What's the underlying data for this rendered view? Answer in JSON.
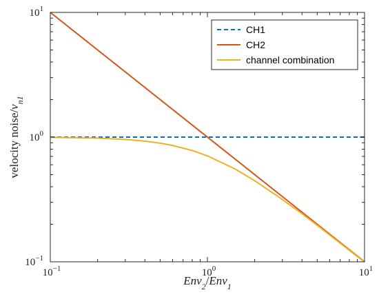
{
  "chart_data": {
    "type": "line",
    "title": "",
    "x_scale": "log",
    "y_scale": "log",
    "xlim": [
      0.1,
      10
    ],
    "ylim": [
      0.1,
      10
    ],
    "grid": false,
    "legend_position": "top-right",
    "xlabel": {
      "parts": [
        {
          "text": "Env",
          "style": "italic"
        },
        {
          "text": "2",
          "style": "italic-sub"
        },
        {
          "text": "/",
          "style": "normal"
        },
        {
          "text": "Env",
          "style": "italic"
        },
        {
          "text": "1",
          "style": "italic-sub"
        }
      ]
    },
    "ylabel": {
      "parts": [
        {
          "text": "velocity noise/",
          "style": "normal"
        },
        {
          "text": "v",
          "style": "italic"
        },
        {
          "text": "n1",
          "style": "italic-sub"
        }
      ]
    },
    "x_ticks": [
      {
        "value": 0.1,
        "base": "10",
        "exp": "−1"
      },
      {
        "value": 1,
        "base": "10",
        "exp": "0"
      },
      {
        "value": 10,
        "base": "10",
        "exp": "1"
      }
    ],
    "y_ticks": [
      {
        "value": 0.1,
        "base": "10",
        "exp": "−1"
      },
      {
        "value": 1,
        "base": "10",
        "exp": "0"
      },
      {
        "value": 10,
        "base": "10",
        "exp": "1"
      }
    ],
    "series": [
      {
        "name": "CH1",
        "color": "#0072BD",
        "dash": "dashed",
        "x": [
          0.1,
          10
        ],
        "y": [
          1,
          1
        ]
      },
      {
        "name": "CH2",
        "color": "#D95319",
        "dash": "solid",
        "x": [
          0.1,
          10
        ],
        "y": [
          10,
          0.1
        ]
      },
      {
        "name": "channel combination",
        "color": "#EDB120",
        "dash": "solid",
        "x": [
          0.1,
          0.2,
          0.3,
          0.4,
          0.5,
          0.6,
          0.8,
          1,
          1.5,
          2,
          3,
          4,
          5,
          7,
          10
        ],
        "y": [
          0.995,
          0.981,
          0.958,
          0.928,
          0.894,
          0.857,
          0.781,
          0.707,
          0.555,
          0.447,
          0.316,
          0.243,
          0.196,
          0.141,
          0.0995
        ]
      }
    ]
  }
}
